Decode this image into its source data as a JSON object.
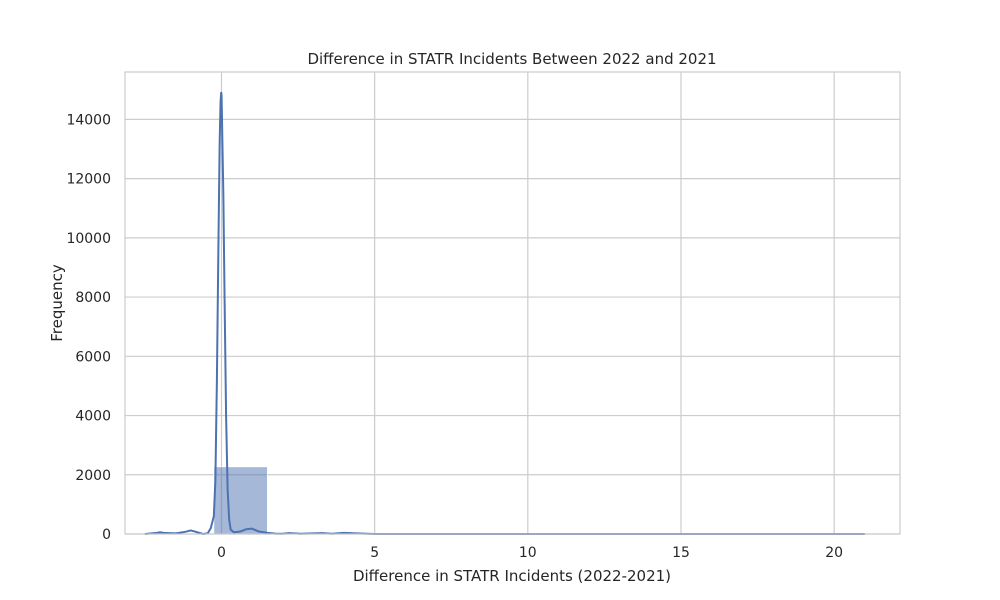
{
  "chart_data": {
    "type": "bar",
    "title": "Difference in STATR Incidents Between 2022 and 2021",
    "xlabel": "Difference in STATR Incidents (2022-2021)",
    "ylabel": "Frequency",
    "xlim": [
      -3.15,
      22.15
    ],
    "ylim": [
      0,
      15600
    ],
    "xticks": [
      0,
      5,
      10,
      15,
      20
    ],
    "yticks": [
      0,
      2000,
      4000,
      6000,
      8000,
      10000,
      12000,
      14000
    ],
    "grid": true,
    "bar_color": "#4c72b0",
    "bar_opacity": 0.5,
    "line_color": "#4c72b0",
    "bins": [
      {
        "x0": -2.0,
        "x1": -0.25,
        "count": 10
      },
      {
        "x0": -0.25,
        "x1": 1.5,
        "count": 2270
      },
      {
        "x0": 1.5,
        "x1": 3.25,
        "count": 15
      },
      {
        "x0": 3.25,
        "x1": 5.0,
        "count": 8
      },
      {
        "x0": 5.0,
        "x1": 6.75,
        "count": 3
      },
      {
        "x0": 6.75,
        "x1": 8.5,
        "count": 2
      },
      {
        "x0": 8.5,
        "x1": 10.25,
        "count": 1
      },
      {
        "x0": 10.25,
        "x1": 12.0,
        "count": 1
      },
      {
        "x0": 12.0,
        "x1": 13.75,
        "count": 1
      },
      {
        "x0": 13.75,
        "x1": 15.5,
        "count": 3
      },
      {
        "x0": 15.5,
        "x1": 17.25,
        "count": 2
      },
      {
        "x0": 17.25,
        "x1": 19.0,
        "count": 2
      },
      {
        "x0": 19.0,
        "x1": 21.0,
        "count": 3
      }
    ],
    "kde": {
      "x": [
        -2.5,
        -2.1,
        -2.0,
        -1.9,
        -1.5,
        -1.2,
        -1.0,
        -0.8,
        -0.6,
        -0.45,
        -0.35,
        -0.25,
        -0.2,
        -0.15,
        -0.1,
        -0.06,
        -0.03,
        -0.01,
        0.0,
        0.01,
        0.03,
        0.06,
        0.1,
        0.15,
        0.2,
        0.25,
        0.3,
        0.4,
        0.6,
        0.8,
        1.0,
        1.2,
        1.5,
        1.8,
        2.0,
        2.2,
        2.6,
        3.0,
        3.3,
        3.6,
        4.0,
        4.4,
        5.0,
        7.0,
        10.0,
        13.0,
        16.0,
        19.0,
        21.0
      ],
      "y": [
        0,
        40,
        60,
        40,
        20,
        70,
        120,
        60,
        0,
        20,
        200,
        600,
        1800,
        5200,
        9800,
        13200,
        14600,
        14900,
        14850,
        14400,
        13200,
        11500,
        8000,
        4000,
        1500,
        500,
        150,
        60,
        80,
        160,
        180,
        90,
        40,
        10,
        10,
        30,
        10,
        20,
        30,
        10,
        40,
        20,
        0,
        0,
        0,
        0,
        0,
        0,
        0
      ]
    }
  }
}
